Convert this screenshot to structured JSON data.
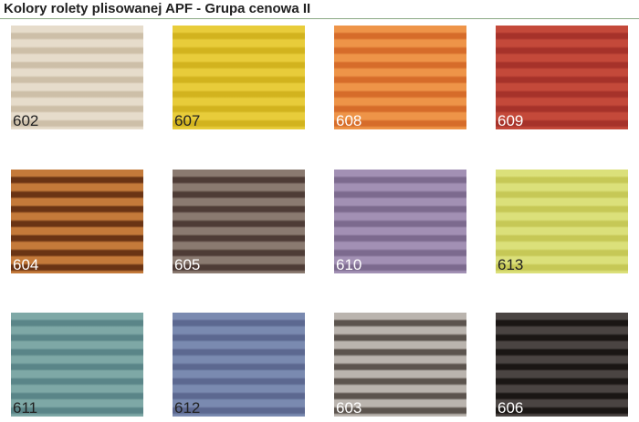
{
  "title": "Kolory rolety plisowanej APF - Grupa cenowa II",
  "swatches": [
    {
      "code": "602",
      "light": "#e6dccb",
      "dark": "#cdbfa8",
      "text": "#222222"
    },
    {
      "code": "607",
      "light": "#e8cc3a",
      "dark": "#d2b31e",
      "text": "#222222"
    },
    {
      "code": "608",
      "light": "#ee9448",
      "dark": "#d66c2a",
      "text": "#ffffff"
    },
    {
      "code": "609",
      "light": "#c4493a",
      "dark": "#a6322a",
      "text": "#ffffff"
    },
    {
      "code": "604",
      "light": "#c47a3a",
      "dark": "#6a3414",
      "text": "#ffffff"
    },
    {
      "code": "605",
      "light": "#8a7a70",
      "dark": "#4e3c36",
      "text": "#ffffff"
    },
    {
      "code": "610",
      "light": "#a290b4",
      "dark": "#7c6a8e",
      "text": "#ffffff"
    },
    {
      "code": "613",
      "light": "#dbe07a",
      "dark": "#c6c856",
      "text": "#222222"
    },
    {
      "code": "611",
      "light": "#7ea8a6",
      "dark": "#5a8588",
      "text": "#222222"
    },
    {
      "code": "612",
      "light": "#7a8ab0",
      "dark": "#5c6890",
      "text": "#222222"
    },
    {
      "code": "603",
      "light": "#bab4ae",
      "dark": "#5c544e",
      "text": "#ffffff"
    },
    {
      "code": "606",
      "light": "#4a4442",
      "dark": "#1a1614",
      "text": "#ffffff"
    }
  ]
}
